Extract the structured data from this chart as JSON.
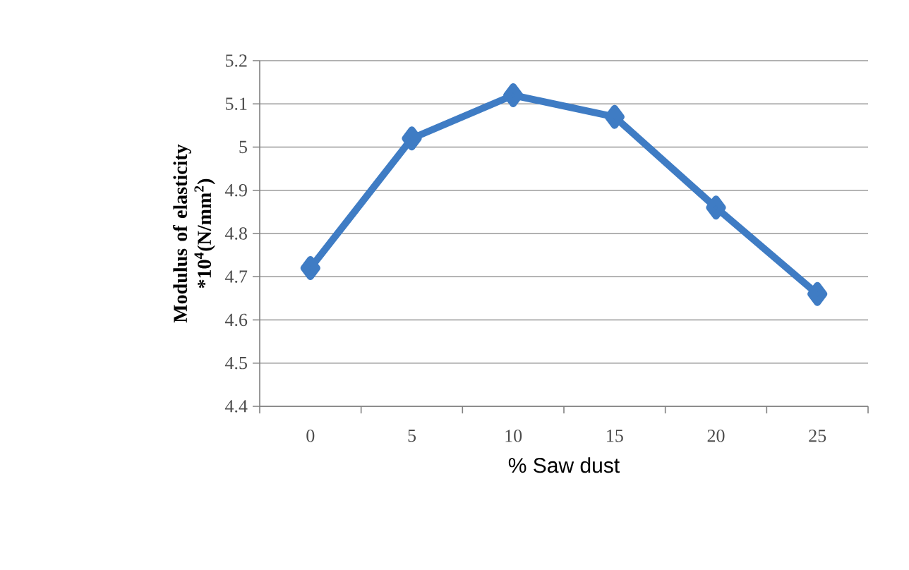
{
  "chart_data": {
    "type": "line",
    "xlabel": "% Saw dust",
    "ylabel": "Modulus of elasticity *10$^{4}$(N/mm$^{2}$)",
    "categories": [
      "0",
      "5",
      "10",
      "15",
      "20",
      "25"
    ],
    "values": [
      4.72,
      5.02,
      5.12,
      5.07,
      4.86,
      4.66
    ],
    "color": "#3f7cc4",
    "marker": "diamond",
    "line_style": "solid",
    "grid": "y",
    "ylim": [
      4.4,
      5.2
    ],
    "yticks": [
      4.4,
      4.5,
      4.6,
      4.7,
      4.8,
      4.9,
      5,
      5.1,
      5.2
    ]
  }
}
